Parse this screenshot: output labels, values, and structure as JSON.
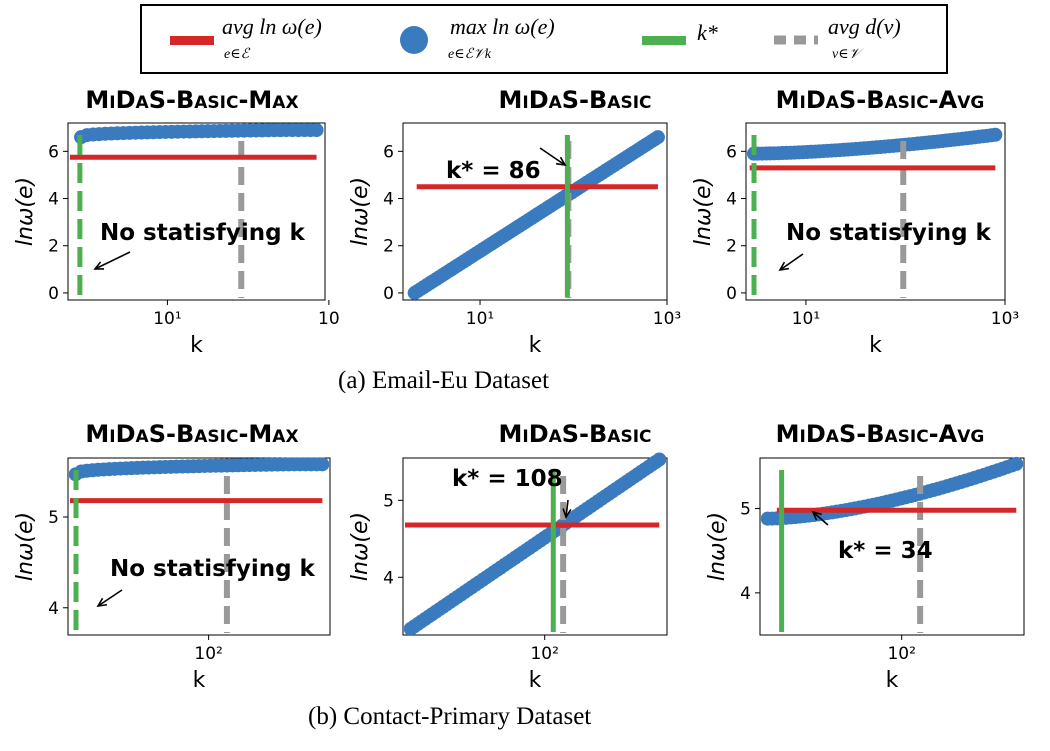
{
  "legend": {
    "avg_label": "avg ln ω(e)",
    "avg_sub": "e∈ℰ",
    "max_label": "max ln ω(e)",
    "max_sub": "e∈ℰ𝒱k",
    "kstar_label": "k*",
    "deg_label": "avg d(v)",
    "deg_sub": "v∈𝒱"
  },
  "colors": {
    "red": "#d62728",
    "blue": "#3a7abf",
    "green": "#4caf50",
    "gray": "#999999"
  },
  "captions": {
    "a": "(a) Email-Eu Dataset",
    "b": "(b) Contact-Primary Dataset"
  },
  "chart_data": [
    {
      "id": "a1",
      "type": "scatter",
      "title": "MiDaS-Basic-Max",
      "xlabel": "k",
      "ylabel": "lnω(e)",
      "xscale": "log",
      "xlim": [
        2.5,
        90
      ],
      "ylim": [
        -0.3,
        7.2
      ],
      "xticks": [
        {
          "v": 10,
          "label": "10¹"
        },
        {
          "v": 95,
          "label": "10"
        }
      ],
      "yticks": [
        0,
        2,
        4,
        6
      ],
      "points": {
        "x_range": [
          3,
          80
        ],
        "y_start": 6.6,
        "y_end": 6.9,
        "n": 40,
        "shape": "sat"
      },
      "red_y": 5.75,
      "red_x": [
        2.5,
        80
      ],
      "green_x": 2.95,
      "green_style": "dashed",
      "gray_x": 28,
      "annotation": "No statisfying k"
    },
    {
      "id": "a2",
      "type": "scatter",
      "title": "MiDaS-Basic",
      "xlabel": "k",
      "ylabel": "lnω(e)",
      "xscale": "log",
      "xlim": [
        1.5,
        1000
      ],
      "ylim": [
        -0.3,
        7.2
      ],
      "xticks": [
        {
          "v": 10,
          "label": "10¹"
        },
        {
          "v": 1000,
          "label": "10³"
        }
      ],
      "yticks": [
        0,
        2,
        4,
        6
      ],
      "points": {
        "x_range": [
          2,
          800
        ],
        "y_start": 0,
        "y_end": 6.6,
        "n": 80,
        "shape": "linear"
      },
      "red_y": 4.5,
      "red_x": [
        2,
        800
      ],
      "green_x": 86,
      "green_style": "solid",
      "gray_x": 88,
      "annotation": "k* = 86"
    },
    {
      "id": "a3",
      "type": "scatter",
      "title": "MiDaS-Basic-Avg",
      "xlabel": "k",
      "ylabel": "lnω(e)",
      "xscale": "log",
      "xlim": [
        2.5,
        1000
      ],
      "ylim": [
        -0.3,
        7.2
      ],
      "xticks": [
        {
          "v": 10,
          "label": "10¹"
        },
        {
          "v": 1000,
          "label": "10³"
        }
      ],
      "yticks": [
        0,
        2,
        4,
        6
      ],
      "points": {
        "x_range": [
          3,
          800
        ],
        "y_start": 5.9,
        "y_end": 6.7,
        "n": 60,
        "shape": "slow"
      },
      "red_y": 5.3,
      "red_x": [
        2.6,
        800
      ],
      "green_x": 2.95,
      "green_style": "dashed",
      "gray_x": 95,
      "annotation": "No statisfying k"
    },
    {
      "id": "b1",
      "type": "scatter",
      "title": "MiDaS-Basic-Max",
      "xlabel": "k",
      "ylabel": "lnω(e)",
      "xscale": "log",
      "xlim": [
        28,
        300
      ],
      "ylim": [
        3.7,
        5.65
      ],
      "xticks": [
        {
          "v": 100,
          "label": "10²"
        }
      ],
      "yticks": [
        4,
        5
      ],
      "points": {
        "x_range": [
          30,
          280
        ],
        "y_start": 5.47,
        "y_end": 5.58,
        "n": 45,
        "shape": "sat"
      },
      "red_y": 5.18,
      "red_x": [
        28,
        280
      ],
      "green_x": 30,
      "green_style": "dashed",
      "gray_x": 118,
      "annotation": "No statisfying k"
    },
    {
      "id": "b2",
      "type": "scatter",
      "title": "MiDaS-Basic",
      "xlabel": "k",
      "ylabel": "lnω(e)",
      "xscale": "log",
      "xlim": [
        28,
        300
      ],
      "ylim": [
        3.25,
        5.55
      ],
      "xticks": [
        {
          "v": 100,
          "label": "10²"
        }
      ],
      "yticks": [
        4,
        5
      ],
      "points": {
        "x_range": [
          30,
          280
        ],
        "y_start": 3.33,
        "y_end": 5.53,
        "n": 70,
        "shape": "linear"
      },
      "red_y": 4.68,
      "red_x": [
        28,
        280
      ],
      "green_x": 108,
      "green_style": "solid",
      "gray_x": 118,
      "annotation": "k* = 108"
    },
    {
      "id": "b3",
      "type": "scatter",
      "title": "MiDaS-Basic-Avg",
      "xlabel": "k",
      "ylabel": "lnω(e)",
      "xscale": "log",
      "xlim": [
        28,
        300
      ],
      "ylim": [
        3.5,
        5.6
      ],
      "xticks": [
        {
          "v": 100,
          "label": "10²"
        }
      ],
      "yticks": [
        4,
        5
      ],
      "points": {
        "x_range": [
          30,
          280
        ],
        "y_start": 4.88,
        "y_end": 5.53,
        "n": 55,
        "shape": "slow"
      },
      "red_y": 4.98,
      "red_x": [
        32,
        280
      ],
      "green_x": 34,
      "green_style": "solid",
      "gray_x": 118,
      "annotation": "k* = 34"
    }
  ]
}
